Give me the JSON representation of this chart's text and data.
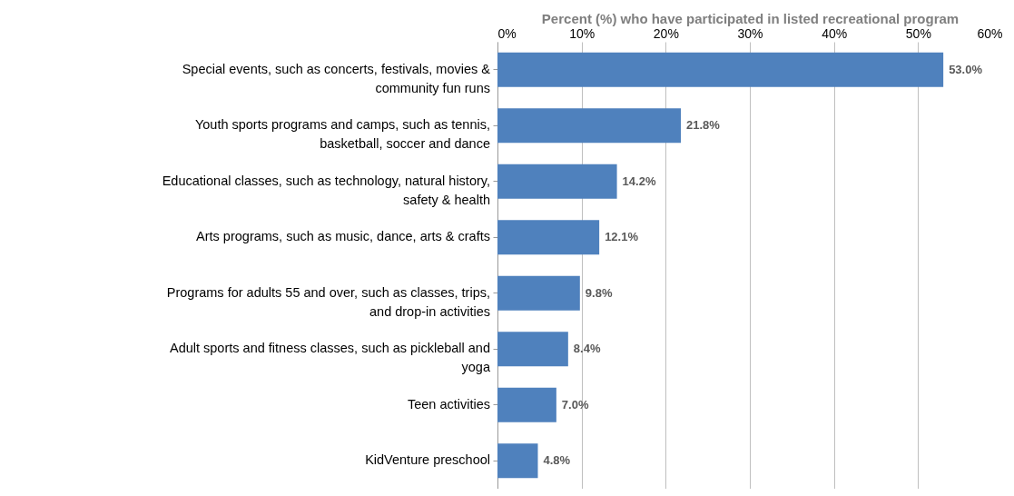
{
  "chart_data": {
    "type": "bar",
    "orientation": "horizontal",
    "xlabel": "Percent (%) who have participated in listed recreational program",
    "categories": [
      "Special events, such as concerts, festivals, movies & community fun runs",
      "Youth sports programs and camps, such as tennis, basketball, soccer and dance",
      "Educational classes, such as technology, natural history, safety & health",
      "Arts programs, such as music, dance, arts & crafts",
      "Programs for adults 55 and over, such as classes, trips, and drop-in activities",
      "Adult sports and fitness classes, such as pickleball and yoga",
      "Teen activities",
      "KidVenture preschool"
    ],
    "values": [
      53.0,
      21.8,
      14.2,
      12.1,
      9.8,
      8.4,
      7.0,
      4.8
    ],
    "value_labels": [
      "53.0%",
      "21.8%",
      "14.2%",
      "12.1%",
      "9.8%",
      "8.4%",
      "7.0%",
      "4.8%"
    ],
    "color": "#4f81bd",
    "xlim": [
      0,
      60
    ],
    "xticks": [
      {
        "value": 0,
        "label": "0%"
      },
      {
        "value": 10,
        "label": "10%"
      },
      {
        "value": 20,
        "label": "20%"
      },
      {
        "value": 30,
        "label": "30%"
      },
      {
        "value": 40,
        "label": "40%"
      },
      {
        "value": 50,
        "label": "50%"
      },
      {
        "value": 60,
        "label": "60%"
      }
    ],
    "grid": "x"
  }
}
